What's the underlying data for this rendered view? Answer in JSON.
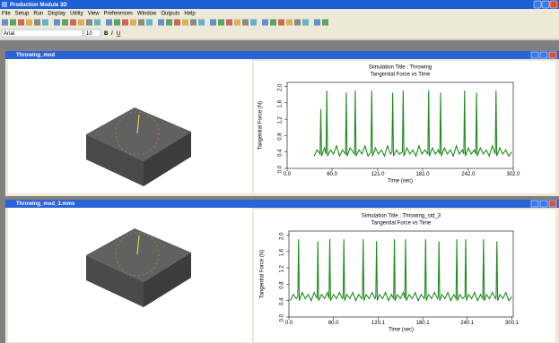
{
  "app": {
    "title": "Production Module 3D",
    "menu": [
      "File",
      "Setup",
      "Run",
      "Display",
      "Utility",
      "View",
      "Preferences",
      "Window",
      "Outputs",
      "Help"
    ],
    "font": "Arial",
    "font_size": "10"
  },
  "windows": [
    {
      "title": "Throwing_mod"
    },
    {
      "title": "Throwing_mod_3.mms"
    }
  ],
  "chart_data": [
    {
      "type": "line",
      "title": "Simulation Title : Throwing",
      "subtitle": "Tangential Force vs Time",
      "xlabel": "Time (sec)",
      "ylabel": "Tangential Force (N)",
      "color": "#1f8a1f",
      "x": [
        36,
        40,
        44,
        45,
        46,
        50,
        52,
        53,
        54,
        58,
        62,
        66,
        70,
        74,
        78,
        79,
        80,
        84,
        88,
        90,
        91,
        92,
        96,
        100,
        104,
        108,
        112,
        113,
        114,
        118,
        122,
        126,
        130,
        134,
        138,
        140,
        141,
        142,
        146,
        150,
        154,
        155,
        156,
        160,
        164,
        168,
        172,
        176,
        180,
        184,
        188,
        189,
        190,
        194,
        198,
        202,
        204,
        205,
        206,
        210,
        214,
        218,
        222,
        226,
        230,
        234,
        236,
        237,
        238,
        242,
        246,
        250,
        252,
        253,
        254,
        258,
        262,
        266,
        270,
        274,
        278,
        279,
        280,
        284,
        288,
        292,
        296,
        300
      ],
      "values": [
        0.3,
        0.45,
        0.35,
        1.45,
        0.3,
        0.5,
        0.35,
        1.9,
        0.3,
        0.45,
        0.35,
        0.55,
        0.3,
        0.45,
        0.35,
        1.85,
        0.3,
        0.5,
        0.4,
        0.35,
        1.9,
        0.3,
        0.45,
        0.35,
        0.55,
        0.3,
        0.4,
        1.9,
        0.3,
        0.5,
        0.35,
        0.45,
        0.3,
        0.55,
        0.35,
        0.4,
        1.85,
        0.3,
        0.45,
        0.35,
        0.4,
        1.9,
        0.3,
        0.5,
        0.35,
        0.45,
        0.3,
        0.55,
        0.35,
        0.45,
        0.35,
        1.9,
        0.3,
        0.5,
        0.35,
        0.45,
        0.35,
        1.85,
        0.3,
        0.5,
        0.35,
        0.45,
        0.3,
        0.55,
        0.35,
        0.45,
        0.35,
        1.9,
        0.3,
        0.5,
        0.35,
        0.45,
        0.35,
        1.85,
        0.3,
        0.5,
        0.35,
        0.45,
        0.3,
        0.55,
        0.35,
        1.9,
        0.3,
        0.5,
        0.35,
        0.45,
        0.3,
        0.4
      ],
      "xlim": [
        0,
        302
      ],
      "xticks": [
        {
          "value": 0,
          "label": "0.0"
        },
        {
          "value": 60,
          "label": "60.0"
        },
        {
          "value": 121,
          "label": "121.0"
        },
        {
          "value": 181,
          "label": "181.0"
        },
        {
          "value": 242,
          "label": "242.0"
        },
        {
          "value": 302,
          "label": "302.0"
        }
      ],
      "ylim": [
        0,
        2.1
      ],
      "yticks": [
        {
          "value": 0,
          "label": "0.0"
        },
        0.4,
        0.8,
        1.2,
        1.6,
        {
          "value": 2,
          "label": "2.0"
        }
      ]
    },
    {
      "type": "line",
      "title": "Simulation Title : Throwing_std_3",
      "subtitle": "Tangential Force vs Time",
      "xlabel": "Time (sec)",
      "ylabel": "Tangential Force (N)",
      "color": "#1f8a1f",
      "x": [
        2,
        6,
        10,
        12,
        13,
        14,
        18,
        22,
        26,
        30,
        34,
        38,
        39,
        40,
        44,
        48,
        52,
        54,
        55,
        56,
        60,
        64,
        68,
        72,
        73,
        74,
        75,
        78,
        82,
        86,
        90,
        94,
        98,
        99,
        100,
        101,
        104,
        108,
        112,
        116,
        117,
        118,
        119,
        122,
        126,
        130,
        134,
        138,
        141,
        142,
        143,
        146,
        150,
        154,
        156,
        157,
        158,
        162,
        166,
        170,
        174,
        178,
        182,
        183,
        184,
        185,
        188,
        192,
        196,
        200,
        201,
        202,
        203,
        206,
        210,
        214,
        218,
        222,
        225,
        226,
        227,
        230,
        234,
        237,
        238,
        239,
        242,
        246,
        250,
        254,
        258,
        261,
        262,
        263,
        266,
        270,
        274,
        278,
        279,
        280,
        281,
        284,
        288,
        292,
        296,
        300
      ],
      "values": [
        0.4,
        0.55,
        0.45,
        0.5,
        1.9,
        0.4,
        0.6,
        0.45,
        0.55,
        0.4,
        0.6,
        0.45,
        1.85,
        0.4,
        0.55,
        0.45,
        0.6,
        0.45,
        1.9,
        0.4,
        0.55,
        0.45,
        0.6,
        0.45,
        0.5,
        1.9,
        0.4,
        0.55,
        0.45,
        0.6,
        0.4,
        0.55,
        0.45,
        0.5,
        1.9,
        0.4,
        0.55,
        0.45,
        0.6,
        0.45,
        0.5,
        1.85,
        0.4,
        0.55,
        0.45,
        0.6,
        0.4,
        0.55,
        0.45,
        1.9,
        0.4,
        0.55,
        0.45,
        0.6,
        0.45,
        1.9,
        0.4,
        0.55,
        0.45,
        0.6,
        0.4,
        0.55,
        0.45,
        0.5,
        1.9,
        0.4,
        0.55,
        0.45,
        0.6,
        0.45,
        0.5,
        1.85,
        0.4,
        0.55,
        0.45,
        0.6,
        0.4,
        0.55,
        0.45,
        1.9,
        0.4,
        0.55,
        0.45,
        0.5,
        1.9,
        0.4,
        0.55,
        0.45,
        0.6,
        0.4,
        0.55,
        0.45,
        1.9,
        0.4,
        0.55,
        0.45,
        0.6,
        0.45,
        0.5,
        1.85,
        0.4,
        0.55,
        0.45,
        0.6,
        0.4,
        0.5
      ],
      "xlim": [
        0,
        302
      ],
      "xticks": [
        {
          "value": 0,
          "label": "0.0"
        },
        {
          "value": 60,
          "label": "60.0"
        },
        120.1,
        180.1,
        240.1,
        300.1
      ],
      "ylim": [
        0,
        2.1
      ],
      "yticks": [
        {
          "value": 0,
          "label": "0.0"
        },
        0.4,
        0.8,
        1.2,
        1.6,
        {
          "value": 2,
          "label": "2.0"
        }
      ]
    }
  ]
}
